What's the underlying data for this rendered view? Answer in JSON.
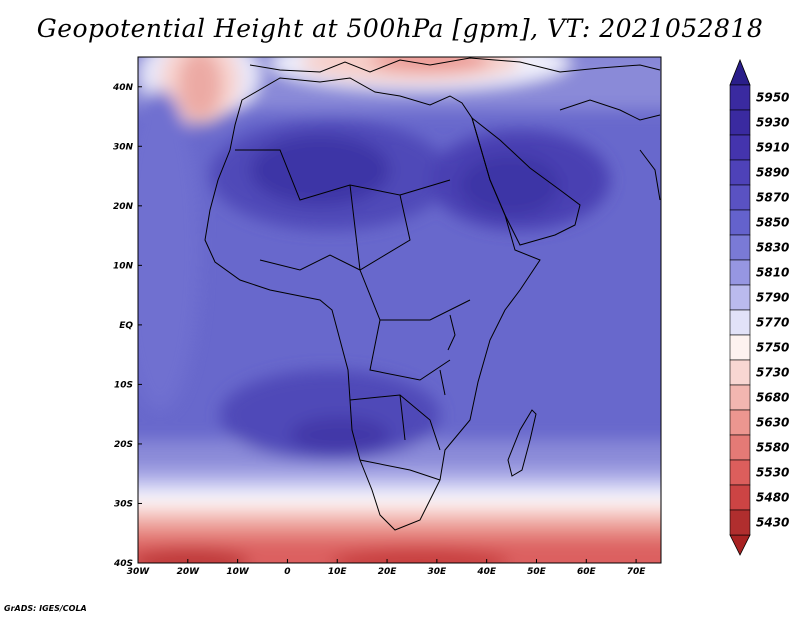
{
  "title": "Geopotential Height at 500hPa [gpm], VT: 2021052818",
  "credit": "GrADS: IGES/COLA",
  "map": {
    "projection": "latlon",
    "lon_range": [
      -30,
      75
    ],
    "lat_range": [
      -40,
      45
    ],
    "lon_ticks": [
      {
        "value": -30,
        "label": "30W"
      },
      {
        "value": -20,
        "label": "20W"
      },
      {
        "value": -10,
        "label": "10W"
      },
      {
        "value": 0,
        "label": "0"
      },
      {
        "value": 10,
        "label": "10E"
      },
      {
        "value": 20,
        "label": "20E"
      },
      {
        "value": 30,
        "label": "30E"
      },
      {
        "value": 40,
        "label": "40E"
      },
      {
        "value": 50,
        "label": "50E"
      },
      {
        "value": 60,
        "label": "60E"
      },
      {
        "value": 70,
        "label": "70E"
      }
    ],
    "lat_ticks": [
      {
        "value": 40,
        "label": "40N"
      },
      {
        "value": 30,
        "label": "30N"
      },
      {
        "value": 20,
        "label": "20N"
      },
      {
        "value": 10,
        "label": "10N"
      },
      {
        "value": 0,
        "label": "EQ"
      },
      {
        "value": -10,
        "label": "10S"
      },
      {
        "value": -20,
        "label": "20S"
      },
      {
        "value": -30,
        "label": "30S"
      },
      {
        "value": -40,
        "label": "40S"
      }
    ]
  },
  "colorbar": {
    "orientation": "vertical",
    "levels": [
      {
        "label": "5950",
        "color": "#3a2aa0"
      },
      {
        "label": "5930",
        "color": "#3a2aa0"
      },
      {
        "label": "5910",
        "color": "#4434ad"
      },
      {
        "label": "5890",
        "color": "#4e42b8"
      },
      {
        "label": "5870",
        "color": "#5a52c2"
      },
      {
        "label": "5850",
        "color": "#6462cc"
      },
      {
        "label": "5830",
        "color": "#7a7ad6"
      },
      {
        "label": "5810",
        "color": "#9696e2"
      },
      {
        "label": "5790",
        "color": "#babaee"
      },
      {
        "label": "5770",
        "color": "#e2e2f8"
      },
      {
        "label": "5750",
        "color": "#fdf2f0"
      },
      {
        "label": "5730",
        "color": "#f8d6d2"
      },
      {
        "label": "5680",
        "color": "#f2b6b0"
      },
      {
        "label": "5630",
        "color": "#ec9690"
      },
      {
        "label": "5580",
        "color": "#e47a76"
      },
      {
        "label": "5530",
        "color": "#dc5e5c"
      },
      {
        "label": "5480",
        "color": "#cc4444"
      },
      {
        "label": "5430",
        "color": "#b02e2e"
      }
    ],
    "top_color": "#2a1e8a",
    "bottom_color": "#a82222"
  }
}
